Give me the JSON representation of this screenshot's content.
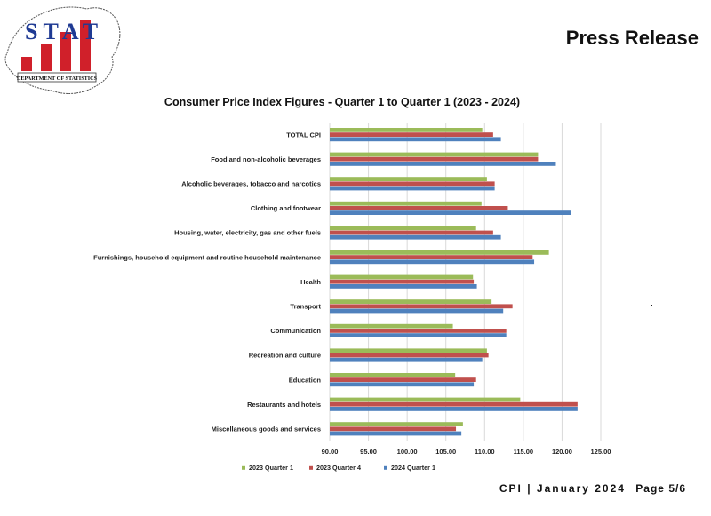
{
  "header": {
    "logo_text": "STAT",
    "logo_subtitle": "DEPARTMENT OF STATISTICS",
    "press_release": "Press Release"
  },
  "footer": {
    "doc_label": "CPI | January 2024",
    "page_label": "Page 5/6"
  },
  "colors": {
    "series1": "#9bbb59",
    "series2": "#c0504d",
    "series3": "#4f81bd",
    "grid": "#d9d9d9",
    "logo_red": "#d0202a",
    "logo_blue": "#1f3a93"
  },
  "chart_data": {
    "type": "bar",
    "orientation": "horizontal",
    "title": "Consumer Price Index Figures - Quarter 1 to Quarter 1 (2023 - 2024)",
    "xlabel": "",
    "ylabel": "",
    "xlim": [
      90,
      125
    ],
    "ticks": [
      "90.00",
      "95.00",
      "100.00",
      "105.00",
      "110.00",
      "115.00",
      "120.00",
      "125.00"
    ],
    "grid": true,
    "legend_position": "bottom",
    "categories": [
      "TOTAL CPI",
      "Food and non-alcoholic beverages",
      "Alcoholic beverages, tobacco and narcotics",
      "Clothing and footwear",
      "Housing, water, electricity, gas and other fuels",
      "Furnishings, household equipment and routine household maintenance",
      "Health",
      "Transport",
      "Communication",
      "Recreation and culture",
      "Education",
      "Restaurants and hotels",
      "Miscellaneous goods and services"
    ],
    "series": [
      {
        "name": "2023 Quarter 1",
        "values": [
          109.7,
          116.9,
          110.3,
          109.6,
          108.9,
          118.3,
          108.5,
          110.9,
          105.9,
          110.3,
          106.2,
          114.6,
          107.2
        ]
      },
      {
        "name": "2023 Quarter 4",
        "values": [
          111.1,
          116.9,
          111.3,
          113.0,
          111.1,
          116.2,
          108.6,
          113.6,
          112.8,
          110.5,
          108.9,
          122.0,
          106.3
        ]
      },
      {
        "name": "2024 Quarter 1",
        "values": [
          112.1,
          119.2,
          111.3,
          121.2,
          112.1,
          116.4,
          109.0,
          112.4,
          112.8,
          109.7,
          108.6,
          122.0,
          107.0
        ]
      }
    ]
  }
}
